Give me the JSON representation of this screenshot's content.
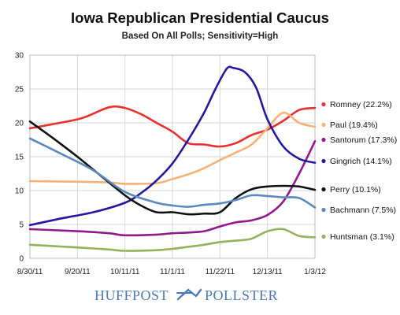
{
  "chart_data": {
    "type": "line",
    "title": "Iowa Republican Presidential Caucus",
    "subtitle": "Based On All Polls; Sensitivity=High",
    "xlabel": "",
    "ylabel": "",
    "x_ticks": [
      "8/30/11",
      "9/20/11",
      "10/11/11",
      "11/1/11",
      "11/22/11",
      "12/13/11",
      "1/3/12"
    ],
    "x_domain": [
      "2011-08-30",
      "2012-01-03"
    ],
    "ylim": [
      0,
      30
    ],
    "y_ticks": [
      0,
      5,
      10,
      15,
      20,
      25,
      30
    ],
    "grid": true,
    "legend_position": "right",
    "series": [
      {
        "name": "Romney",
        "legend": "Romney (22.2%)",
        "color": "#e8312f",
        "x": [
          "2011-08-30",
          "2011-09-09",
          "2011-09-22",
          "2011-10-04",
          "2011-10-11",
          "2011-10-18",
          "2011-10-25",
          "2011-11-01",
          "2011-11-08",
          "2011-11-15",
          "2011-11-22",
          "2011-11-29",
          "2011-12-06",
          "2011-12-13",
          "2011-12-20",
          "2011-12-27",
          "2012-01-03"
        ],
        "y": [
          19.2,
          19.8,
          20.7,
          22.3,
          22.2,
          21.3,
          20.0,
          18.7,
          17.0,
          16.8,
          16.5,
          17.0,
          18.2,
          19.0,
          20.3,
          21.9,
          22.2
        ]
      },
      {
        "name": "Paul",
        "legend": "Paul (19.4%)",
        "color": "#f6b177",
        "x": [
          "2011-08-30",
          "2011-09-20",
          "2011-10-04",
          "2011-10-11",
          "2011-10-25",
          "2011-11-01",
          "2011-11-08",
          "2011-11-15",
          "2011-11-22",
          "2011-11-29",
          "2011-12-06",
          "2011-12-13",
          "2011-12-20",
          "2011-12-27",
          "2012-01-03"
        ],
        "y": [
          11.4,
          11.3,
          11.2,
          11.0,
          11.1,
          11.7,
          12.4,
          13.3,
          14.5,
          15.6,
          16.8,
          19.2,
          21.5,
          20.0,
          19.4
        ]
      },
      {
        "name": "Santorum",
        "legend": "Santorum (17.3%)",
        "color": "#8f1a8d",
        "x": [
          "2011-08-30",
          "2011-09-20",
          "2011-10-04",
          "2011-10-11",
          "2011-10-25",
          "2011-11-01",
          "2011-11-08",
          "2011-11-15",
          "2011-11-22",
          "2011-11-29",
          "2011-12-06",
          "2011-12-13",
          "2011-12-20",
          "2011-12-27",
          "2012-01-03"
        ],
        "y": [
          4.3,
          4.0,
          3.7,
          3.4,
          3.5,
          3.7,
          3.8,
          4.0,
          4.7,
          5.3,
          5.6,
          6.4,
          8.4,
          12.5,
          17.3
        ]
      },
      {
        "name": "Gingrich",
        "legend": "Gingrich (14.1%)",
        "color": "#2319a0",
        "x": [
          "2011-08-30",
          "2011-09-13",
          "2011-09-27",
          "2011-10-11",
          "2011-10-18",
          "2011-10-25",
          "2011-11-01",
          "2011-11-08",
          "2011-11-15",
          "2011-11-20",
          "2011-11-25",
          "2011-11-28",
          "2011-12-03",
          "2011-12-08",
          "2011-12-13",
          "2011-12-20",
          "2011-12-27",
          "2012-01-03"
        ],
        "y": [
          4.9,
          5.9,
          6.8,
          8.2,
          9.6,
          11.5,
          14.0,
          17.5,
          21.5,
          25.0,
          28.0,
          28.1,
          27.5,
          25.2,
          20.5,
          16.5,
          14.7,
          14.1
        ]
      },
      {
        "name": "Perry",
        "legend": "Perry (10.1%)",
        "color": "#111111",
        "x": [
          "2011-08-30",
          "2011-09-09",
          "2011-09-20",
          "2011-10-01",
          "2011-10-11",
          "2011-10-18",
          "2011-10-25",
          "2011-11-01",
          "2011-11-08",
          "2011-11-15",
          "2011-11-22",
          "2011-11-29",
          "2011-12-06",
          "2011-12-13",
          "2011-12-20",
          "2011-12-27",
          "2012-01-03"
        ],
        "y": [
          20.2,
          17.8,
          15.0,
          12.0,
          9.3,
          7.8,
          6.8,
          6.8,
          6.5,
          6.6,
          6.8,
          8.9,
          10.2,
          10.6,
          10.7,
          10.6,
          10.1
        ]
      },
      {
        "name": "Bachmann",
        "legend": "Bachmann (7.5%)",
        "color": "#5b89be",
        "x": [
          "2011-08-30",
          "2011-09-13",
          "2011-09-27",
          "2011-10-11",
          "2011-10-25",
          "2011-11-01",
          "2011-11-08",
          "2011-11-15",
          "2011-11-22",
          "2011-11-29",
          "2011-12-06",
          "2011-12-13",
          "2011-12-20",
          "2011-12-27",
          "2012-01-03"
        ],
        "y": [
          17.7,
          15.4,
          13.0,
          9.8,
          8.2,
          7.8,
          7.6,
          7.9,
          8.1,
          8.6,
          9.3,
          9.2,
          9.0,
          8.9,
          7.5
        ]
      },
      {
        "name": "Huntsman",
        "legend": "Huntsman (3.1%)",
        "color": "#93b35a",
        "x": [
          "2011-08-30",
          "2011-09-20",
          "2011-10-04",
          "2011-10-11",
          "2011-10-25",
          "2011-11-01",
          "2011-11-08",
          "2011-11-15",
          "2011-11-22",
          "2011-11-29",
          "2011-12-06",
          "2011-12-13",
          "2011-12-20",
          "2011-12-27",
          "2012-01-03"
        ],
        "y": [
          2.0,
          1.6,
          1.3,
          1.1,
          1.2,
          1.4,
          1.7,
          2.0,
          2.4,
          2.6,
          2.9,
          4.0,
          4.3,
          3.3,
          3.1
        ]
      }
    ]
  },
  "footer": {
    "brand_left": "HUFFPOST",
    "brand_right": "POLLSTER"
  }
}
